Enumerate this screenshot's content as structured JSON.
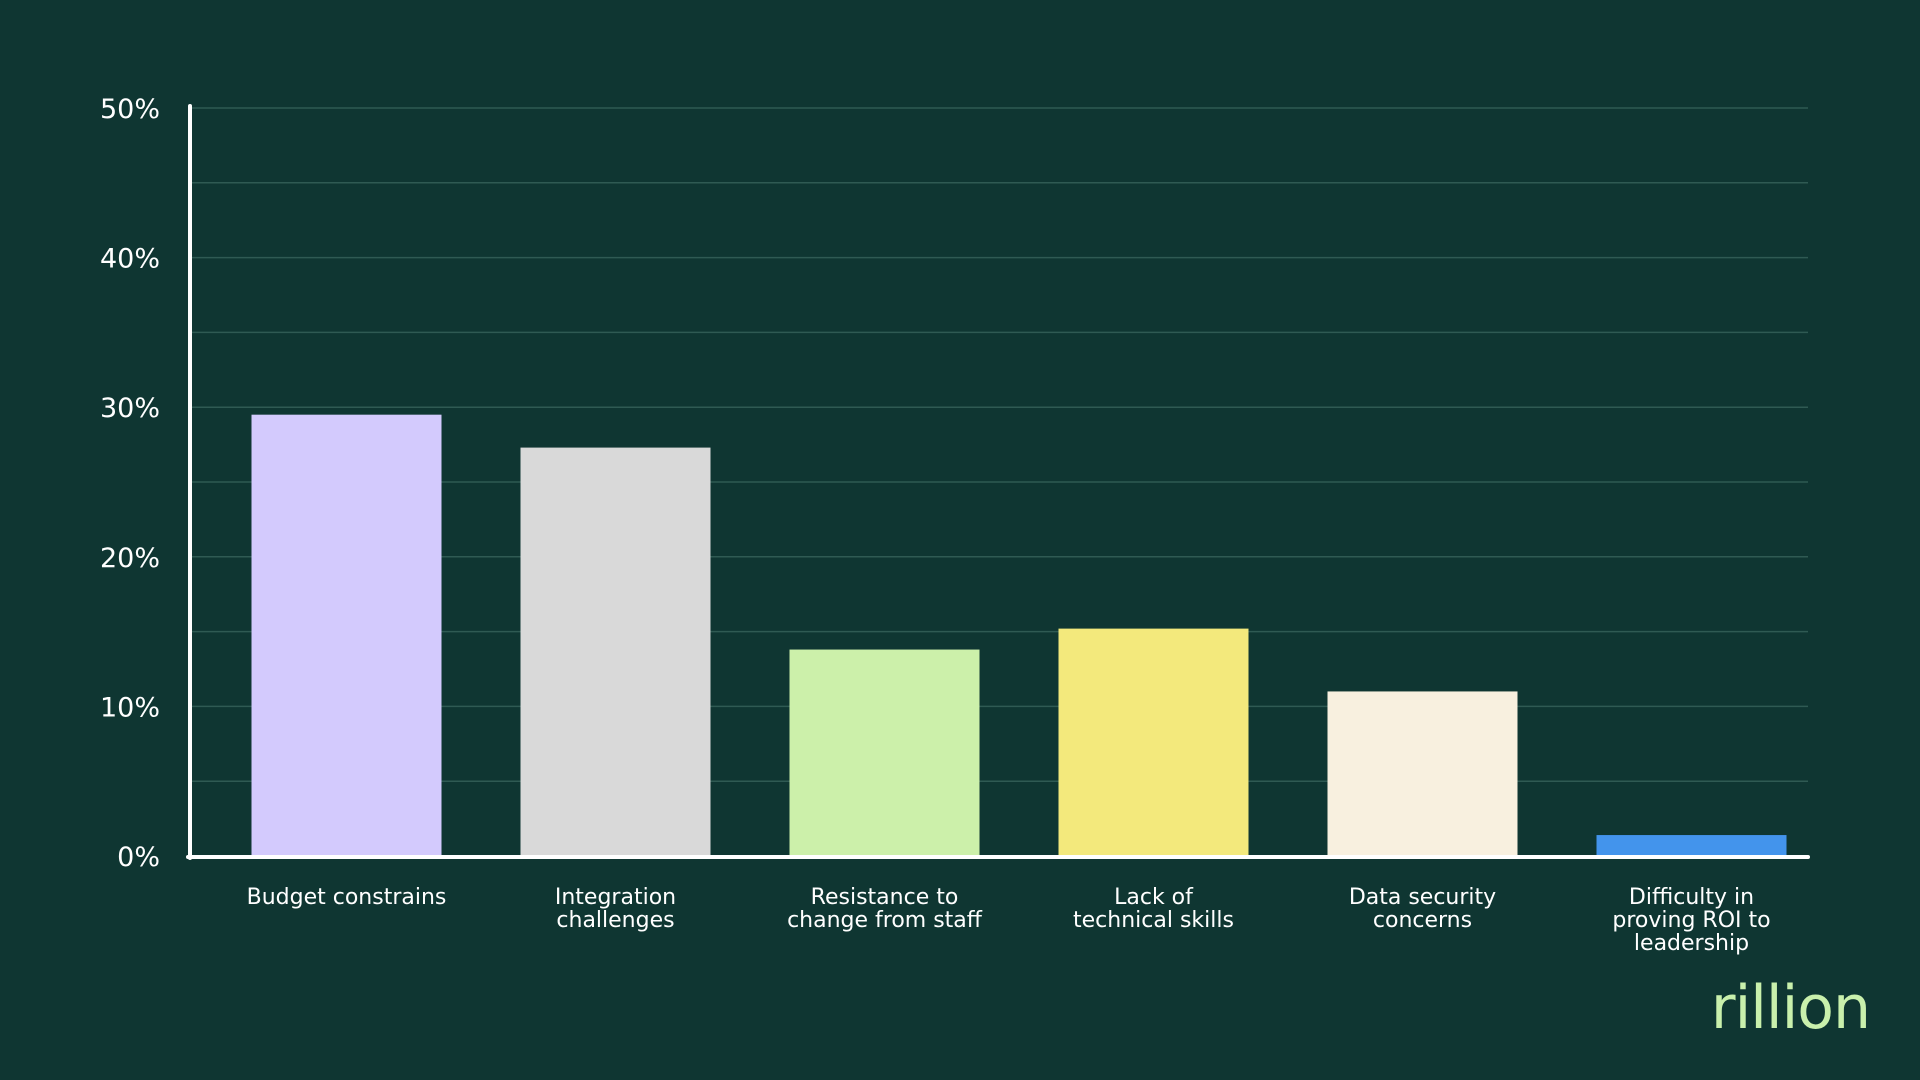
{
  "colors": {
    "background": "#0f3632",
    "text": "#ffffff",
    "axis": "#ffffff",
    "grid": "#2f5a53",
    "brand": "#c9f0ac"
  },
  "brand": {
    "name": "rillion"
  },
  "chart_data": {
    "type": "bar",
    "title": "",
    "xlabel": "",
    "ylabel": "",
    "ylim": [
      0,
      50
    ],
    "grid": true,
    "y_ticks": [
      0,
      10,
      20,
      30,
      40,
      50
    ],
    "y_tick_labels": [
      "0%",
      "10%",
      "20%",
      "30%",
      "40%",
      "50%"
    ],
    "categories": [
      [
        "Budget constrains"
      ],
      [
        "Integration",
        "challenges"
      ],
      [
        "Resistance to",
        "change from staff"
      ],
      [
        "Lack of",
        "technical skills"
      ],
      [
        "Data security",
        "concerns"
      ],
      [
        "Difficulty in",
        "proving ROI to",
        "leadership"
      ]
    ],
    "values": [
      29.5,
      27.3,
      13.8,
      15.2,
      11.0,
      1.4
    ],
    "bar_colors": [
      "#d3cafd",
      "#d9d9d9",
      "#ccf0aa",
      "#f3e97c",
      "#f8f0df",
      "#4394ec"
    ]
  }
}
